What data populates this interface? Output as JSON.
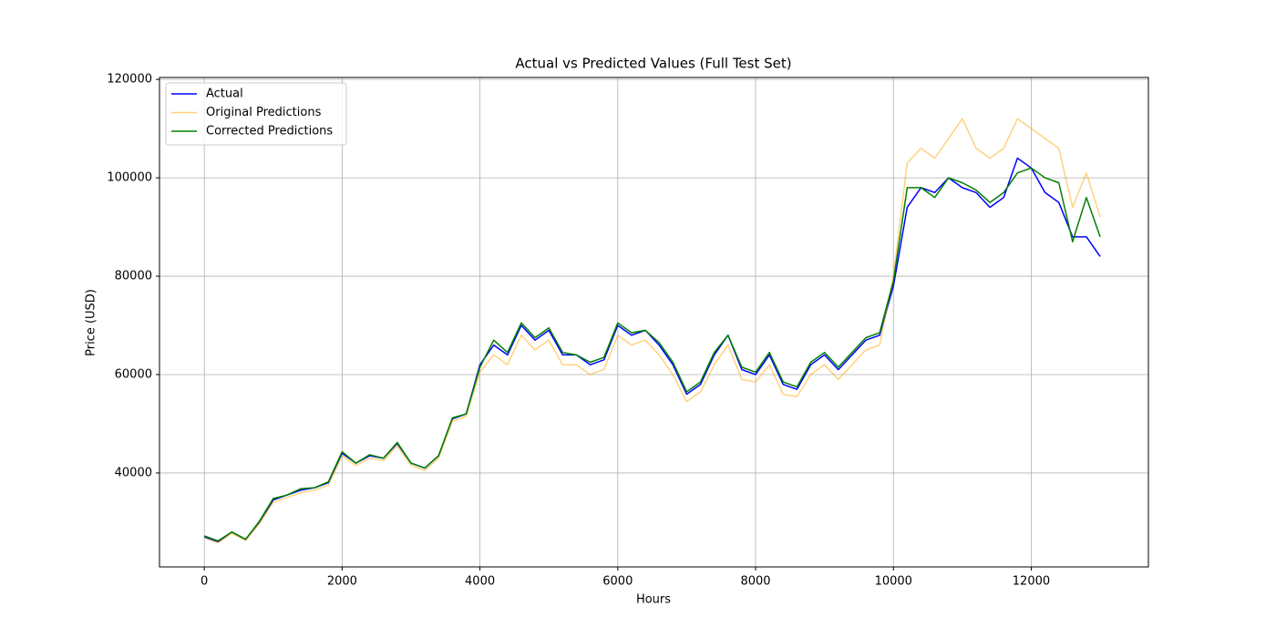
{
  "chart_data": {
    "type": "line",
    "title": "Actual vs Predicted Values (Full Test Set)",
    "x_label": "Hours",
    "y_label": "Price (USD)",
    "x": [
      0,
      200,
      400,
      600,
      800,
      1000,
      1200,
      1400,
      1600,
      1800,
      2000,
      2200,
      2400,
      2600,
      2800,
      3000,
      3200,
      3400,
      3600,
      3800,
      4000,
      4200,
      4400,
      4600,
      4800,
      5000,
      5200,
      5400,
      5600,
      5800,
      6000,
      6200,
      6400,
      6600,
      6800,
      7000,
      7200,
      7400,
      7600,
      7800,
      8000,
      8200,
      8400,
      8600,
      8800,
      9000,
      9200,
      9400,
      9600,
      9800,
      10000,
      10200,
      10400,
      10600,
      10800,
      11000,
      11200,
      11400,
      11600,
      11800,
      12000,
      12200,
      12400,
      12600,
      12800,
      13000
    ],
    "series": [
      {
        "name": "Actual",
        "color": "#0000ff",
        "opacity": 1,
        "values": [
          27000,
          26000,
          28000,
          26500,
          30000,
          34500,
          35500,
          36500,
          37000,
          38000,
          44000,
          42000,
          43500,
          43000,
          46000,
          42000,
          41000,
          43500,
          51000,
          52000,
          62000,
          66000,
          64000,
          70000,
          67000,
          69000,
          64000,
          64000,
          62000,
          63000,
          70000,
          68000,
          69000,
          66000,
          62000,
          56000,
          58000,
          64000,
          68000,
          61000,
          60000,
          64000,
          58000,
          57000,
          62000,
          64000,
          61000,
          64000,
          67000,
          68000,
          78000,
          94000,
          98000,
          97000,
          100000,
          98000,
          97000,
          94000,
          96000,
          104000,
          102000,
          97000,
          95000,
          88000,
          88000,
          84000
        ]
      },
      {
        "name": "Original Predictions",
        "color": "#ffa500",
        "opacity": 0.5,
        "values": [
          26800,
          25800,
          27700,
          26300,
          29700,
          34000,
          35000,
          36000,
          36500,
          37500,
          43500,
          41500,
          43000,
          42500,
          45500,
          41500,
          40500,
          43000,
          50500,
          51500,
          60500,
          64000,
          62000,
          68000,
          65000,
          67000,
          62000,
          62000,
          60000,
          61000,
          68000,
          66000,
          67000,
          64000,
          60000,
          54500,
          56500,
          62000,
          66000,
          59000,
          58500,
          62000,
          56000,
          55500,
          60000,
          62000,
          59000,
          62000,
          65000,
          66000,
          80000,
          103000,
          106000,
          104000,
          108000,
          112000,
          106000,
          104000,
          106000,
          112000,
          110000,
          108000,
          106000,
          94000,
          101000,
          92000
        ]
      },
      {
        "name": "Corrected Predictions",
        "color": "#008000",
        "opacity": 1,
        "values": [
          27200,
          26200,
          28000,
          26500,
          30200,
          34800,
          35500,
          36800,
          37000,
          38200,
          44300,
          42000,
          43700,
          43000,
          46200,
          42000,
          41000,
          43500,
          51200,
          52000,
          61500,
          67000,
          64500,
          70500,
          67500,
          69500,
          64500,
          64000,
          62500,
          63500,
          70500,
          68500,
          69000,
          66500,
          62500,
          56500,
          58500,
          64500,
          68000,
          61500,
          60500,
          64500,
          58500,
          57500,
          62500,
          64500,
          61500,
          64500,
          67500,
          68500,
          79000,
          98000,
          98000,
          96000,
          100000,
          99000,
          97500,
          95000,
          97000,
          101000,
          102000,
          100000,
          99000,
          87000,
          96000,
          88000
        ]
      }
    ],
    "xlim": [
      -650,
      13700
    ],
    "ylim": [
      20900,
      120400
    ],
    "xticks": [
      0,
      2000,
      4000,
      6000,
      8000,
      10000,
      12000
    ],
    "yticks": [
      40000,
      60000,
      80000,
      100000,
      120000
    ],
    "grid": true,
    "legend": "upper-left"
  }
}
